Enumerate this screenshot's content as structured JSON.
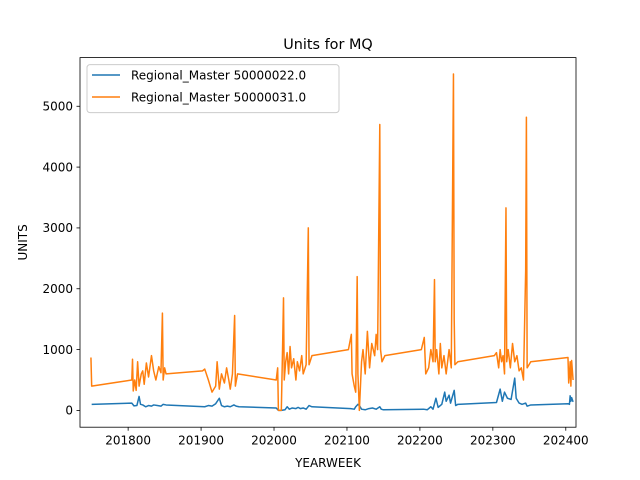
{
  "chart_data": {
    "type": "line",
    "title": "Units for MQ",
    "xlabel": "YEARWEEK",
    "ylabel": "UNITS",
    "xlim": [
      201734,
      202414
    ],
    "ylim": [
      -276,
      5800
    ],
    "xticks": [
      201800,
      201900,
      202000,
      202100,
      202200,
      202300,
      202400
    ],
    "xtick_labels": [
      "201800",
      "201900",
      "202000",
      "202100",
      "202200",
      "202300",
      "202400"
    ],
    "yticks": [
      0,
      1000,
      2000,
      3000,
      4000,
      5000
    ],
    "ytick_labels": [
      "0",
      "1000",
      "2000",
      "3000",
      "4000",
      "5000"
    ],
    "grid": false,
    "legend_position": "top-left",
    "series": [
      {
        "name": "Regional_Master 50000022.0",
        "color": "#1f77b4",
        "points": [
          [
            201750,
            100
          ],
          [
            201805,
            120
          ],
          [
            201808,
            75
          ],
          [
            201812,
            80
          ],
          [
            201815,
            230
          ],
          [
            201817,
            100
          ],
          [
            201820,
            90
          ],
          [
            201824,
            60
          ],
          [
            201828,
            80
          ],
          [
            201832,
            70
          ],
          [
            201835,
            90
          ],
          [
            201840,
            80
          ],
          [
            201845,
            70
          ],
          [
            201848,
            100
          ],
          [
            201852,
            90
          ],
          [
            201905,
            60
          ],
          [
            201910,
            80
          ],
          [
            201915,
            70
          ],
          [
            201920,
            110
          ],
          [
            201925,
            200
          ],
          [
            201928,
            80
          ],
          [
            201932,
            60
          ],
          [
            201936,
            70
          ],
          [
            201940,
            60
          ],
          [
            201945,
            90
          ],
          [
            201948,
            70
          ],
          [
            201952,
            60
          ],
          [
            202003,
            40
          ],
          [
            202006,
            0
          ],
          [
            202010,
            0
          ],
          [
            202015,
            10
          ],
          [
            202018,
            60
          ],
          [
            202021,
            20
          ],
          [
            202025,
            40
          ],
          [
            202030,
            30
          ],
          [
            202033,
            50
          ],
          [
            202036,
            30
          ],
          [
            202040,
            40
          ],
          [
            202044,
            20
          ],
          [
            202048,
            80
          ],
          [
            202052,
            60
          ],
          [
            202105,
            30
          ],
          [
            202110,
            20
          ],
          [
            202112,
            60
          ],
          [
            202115,
            100
          ],
          [
            202117,
            80
          ],
          [
            202120,
            20
          ],
          [
            202125,
            10
          ],
          [
            202130,
            30
          ],
          [
            202135,
            40
          ],
          [
            202140,
            20
          ],
          [
            202145,
            60
          ],
          [
            202147,
            20
          ],
          [
            202150,
            10
          ],
          [
            202205,
            20
          ],
          [
            202210,
            10
          ],
          [
            202215,
            60
          ],
          [
            202218,
            20
          ],
          [
            202222,
            200
          ],
          [
            202225,
            50
          ],
          [
            202230,
            100
          ],
          [
            202234,
            300
          ],
          [
            202236,
            150
          ],
          [
            202240,
            250
          ],
          [
            202242,
            120
          ],
          [
            202247,
            330
          ],
          [
            202249,
            80
          ],
          [
            202252,
            100
          ],
          [
            202305,
            130
          ],
          [
            202310,
            350
          ],
          [
            202313,
            150
          ],
          [
            202316,
            300
          ],
          [
            202320,
            200
          ],
          [
            202325,
            180
          ],
          [
            202330,
            530
          ],
          [
            202332,
            200
          ],
          [
            202336,
            120
          ],
          [
            202340,
            100
          ],
          [
            202345,
            120
          ],
          [
            202347,
            70
          ],
          [
            202352,
            90
          ],
          [
            202403,
            110
          ],
          [
            202405,
            100
          ],
          [
            202406,
            240
          ],
          [
            202407,
            150
          ],
          [
            202408,
            210
          ],
          [
            202410,
            140
          ]
        ]
      },
      {
        "name": "Regional_Master 50000031.0",
        "color": "#ff7f0e",
        "points": [
          [
            201749,
            870
          ],
          [
            201750,
            400
          ],
          [
            201805,
            500
          ],
          [
            201806,
            840
          ],
          [
            201807,
            320
          ],
          [
            201809,
            500
          ],
          [
            201811,
            330
          ],
          [
            201813,
            800
          ],
          [
            201815,
            400
          ],
          [
            201818,
            600
          ],
          [
            201820,
            650
          ],
          [
            201822,
            430
          ],
          [
            201825,
            780
          ],
          [
            201828,
            550
          ],
          [
            201832,
            900
          ],
          [
            201835,
            650
          ],
          [
            201838,
            500
          ],
          [
            201842,
            720
          ],
          [
            201845,
            620
          ],
          [
            201847,
            1600
          ],
          [
            201848,
            500
          ],
          [
            201850,
            700
          ],
          [
            201852,
            600
          ],
          [
            201902,
            650
          ],
          [
            201905,
            680
          ],
          [
            201910,
            500
          ],
          [
            201915,
            300
          ],
          [
            201920,
            400
          ],
          [
            201922,
            800
          ],
          [
            201925,
            350
          ],
          [
            201928,
            600
          ],
          [
            201932,
            450
          ],
          [
            201935,
            700
          ],
          [
            201938,
            500
          ],
          [
            201940,
            350
          ],
          [
            201943,
            600
          ],
          [
            201946,
            1560
          ],
          [
            201947,
            400
          ],
          [
            201950,
            600
          ],
          [
            202003,
            500
          ],
          [
            202005,
            700
          ],
          [
            202006,
            0
          ],
          [
            202010,
            0
          ],
          [
            202012,
            1200
          ],
          [
            202013,
            1850
          ],
          [
            202014,
            500
          ],
          [
            202016,
            800
          ],
          [
            202018,
            950
          ],
          [
            202020,
            600
          ],
          [
            202022,
            1050
          ],
          [
            202024,
            700
          ],
          [
            202027,
            850
          ],
          [
            202030,
            500
          ],
          [
            202032,
            800
          ],
          [
            202035,
            650
          ],
          [
            202038,
            900
          ],
          [
            202040,
            600
          ],
          [
            202044,
            750
          ],
          [
            202047,
            3000
          ],
          [
            202048,
            750
          ],
          [
            202052,
            900
          ],
          [
            202102,
            1000
          ],
          [
            202106,
            1250
          ],
          [
            202107,
            600
          ],
          [
            202110,
            400
          ],
          [
            202112,
            300
          ],
          [
            202114,
            2200
          ],
          [
            202115,
            600
          ],
          [
            202117,
            0
          ],
          [
            202120,
            800
          ],
          [
            202122,
            1000
          ],
          [
            202125,
            600
          ],
          [
            202128,
            1300
          ],
          [
            202131,
            700
          ],
          [
            202134,
            1100
          ],
          [
            202138,
            900
          ],
          [
            202140,
            1250
          ],
          [
            202142,
            1000
          ],
          [
            202145,
            4700
          ],
          [
            202146,
            1000
          ],
          [
            202148,
            800
          ],
          [
            202152,
            900
          ],
          [
            202202,
            1000
          ],
          [
            202206,
            1200
          ],
          [
            202208,
            600
          ],
          [
            202212,
            700
          ],
          [
            202215,
            1000
          ],
          [
            202218,
            800
          ],
          [
            202220,
            2150
          ],
          [
            202221,
            800
          ],
          [
            202223,
            1000
          ],
          [
            202226,
            600
          ],
          [
            202228,
            1100
          ],
          [
            202230,
            700
          ],
          [
            202233,
            900
          ],
          [
            202236,
            600
          ],
          [
            202238,
            800
          ],
          [
            202240,
            1000
          ],
          [
            202243,
            700
          ],
          [
            202246,
            5530
          ],
          [
            202247,
            1500
          ],
          [
            202248,
            750
          ],
          [
            202252,
            800
          ],
          [
            202302,
            900
          ],
          [
            202305,
            950
          ],
          [
            202308,
            700
          ],
          [
            202310,
            1000
          ],
          [
            202312,
            800
          ],
          [
            202314,
            900
          ],
          [
            202316,
            600
          ],
          [
            202318,
            3330
          ],
          [
            202319,
            800
          ],
          [
            202321,
            1000
          ],
          [
            202324,
            700
          ],
          [
            202327,
            1100
          ],
          [
            202330,
            800
          ],
          [
            202333,
            900
          ],
          [
            202336,
            650
          ],
          [
            202339,
            700
          ],
          [
            202342,
            500
          ],
          [
            202345,
            2300
          ],
          [
            202346,
            4820
          ],
          [
            202347,
            700
          ],
          [
            202352,
            800
          ],
          [
            202403,
            870
          ],
          [
            202404,
            450
          ],
          [
            202405,
            600
          ],
          [
            202406,
            800
          ],
          [
            202407,
            400
          ],
          [
            202408,
            820
          ],
          [
            202410,
            500
          ]
        ]
      }
    ]
  }
}
